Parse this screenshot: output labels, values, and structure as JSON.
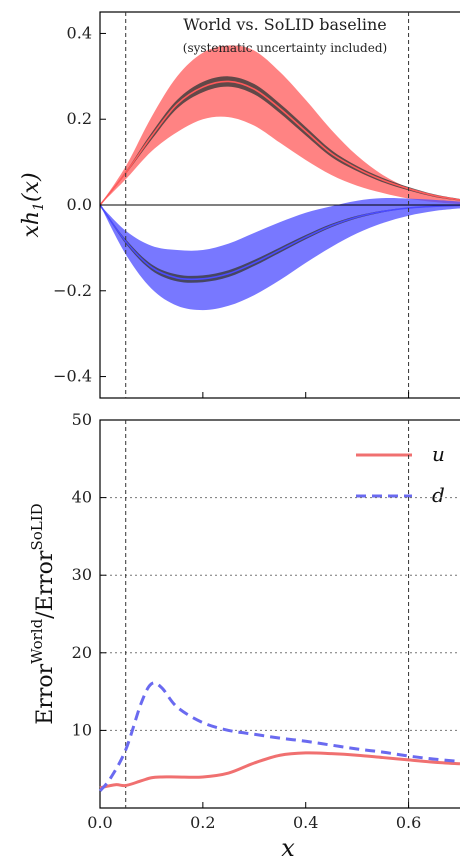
{
  "chart_data": [
    {
      "type": "line",
      "panel": "top",
      "title": "World vs. SoLID baseline",
      "subtitle": "(systematic uncertainty included)",
      "ylabel": "xh1(x)",
      "xlim": [
        0.0,
        0.7
      ],
      "ylim": [
        -0.45,
        0.45
      ],
      "yticks": [
        -0.4,
        -0.2,
        0.0,
        0.2,
        0.4
      ],
      "ytick_labels": [
        "−0.4",
        "−0.2",
        "0.0",
        "0.2",
        "0.4"
      ],
      "vlines": [
        0.05,
        0.6
      ],
      "hline": 0.0,
      "colors": {
        "u": "#ff5a5a",
        "d": "#4b4bff",
        "central": "#222222"
      },
      "series": [
        {
          "x": [
            0.0,
            0.05,
            0.1,
            0.15,
            0.2,
            0.25,
            0.3,
            0.35,
            0.4,
            0.45,
            0.5,
            0.55,
            0.6,
            0.65,
            0.7
          ],
          "central": [
            0.0,
            0.075,
            0.16,
            0.235,
            0.275,
            0.288,
            0.27,
            0.225,
            0.172,
            0.12,
            0.085,
            0.058,
            0.038,
            0.022,
            0.012
          ],
          "wide_upper": [
            0.0,
            0.09,
            0.205,
            0.3,
            0.355,
            0.372,
            0.36,
            0.31,
            0.245,
            0.175,
            0.115,
            0.07,
            0.04,
            0.022,
            0.012
          ],
          "wide_lower": [
            0.0,
            0.06,
            0.125,
            0.17,
            0.2,
            0.205,
            0.185,
            0.145,
            0.105,
            0.07,
            0.045,
            0.028,
            0.015,
            0.007,
            0.002
          ],
          "narrow_upper": [
            0.0,
            0.078,
            0.168,
            0.245,
            0.287,
            0.3,
            0.282,
            0.236,
            0.182,
            0.128,
            0.091,
            0.063,
            0.042,
            0.025,
            0.014
          ],
          "narrow_lower": [
            0.0,
            0.072,
            0.152,
            0.225,
            0.263,
            0.276,
            0.258,
            0.214,
            0.162,
            0.112,
            0.079,
            0.053,
            0.034,
            0.019,
            0.01
          ]
        },
        {
          "x": [
            0.0,
            0.05,
            0.1,
            0.15,
            0.2,
            0.25,
            0.3,
            0.35,
            0.4,
            0.45,
            0.5,
            0.55,
            0.6,
            0.65,
            0.7
          ],
          "central": [
            0.0,
            -0.085,
            -0.145,
            -0.17,
            -0.172,
            -0.16,
            -0.135,
            -0.105,
            -0.075,
            -0.048,
            -0.028,
            -0.015,
            -0.007,
            -0.003,
            -0.001
          ],
          "wide_upper": [
            0.0,
            -0.06,
            -0.095,
            -0.105,
            -0.105,
            -0.09,
            -0.065,
            -0.04,
            -0.018,
            -0.003,
            0.01,
            0.016,
            0.015,
            0.012,
            0.008
          ],
          "wide_lower": [
            0.0,
            -0.115,
            -0.195,
            -0.235,
            -0.245,
            -0.235,
            -0.21,
            -0.175,
            -0.135,
            -0.098,
            -0.066,
            -0.042,
            -0.025,
            -0.014,
            -0.008
          ],
          "narrow_upper": [
            0.0,
            -0.08,
            -0.138,
            -0.162,
            -0.164,
            -0.152,
            -0.128,
            -0.099,
            -0.07,
            -0.044,
            -0.025,
            -0.013,
            -0.006,
            -0.002,
            0.0
          ],
          "narrow_lower": [
            0.0,
            -0.09,
            -0.152,
            -0.178,
            -0.18,
            -0.168,
            -0.142,
            -0.111,
            -0.08,
            -0.052,
            -0.031,
            -0.017,
            -0.008,
            -0.004,
            -0.002
          ]
        }
      ]
    },
    {
      "type": "line",
      "panel": "bottom",
      "ylabel": "Error^World/Error^SoLID",
      "xlabel": "x",
      "xlim": [
        0.0,
        0.7
      ],
      "ylim": [
        0,
        50
      ],
      "xticks": [
        0.0,
        0.2,
        0.4,
        0.6
      ],
      "xtick_labels": [
        "0.0",
        "0.2",
        "0.4",
        "0.6"
      ],
      "yticks": [
        10,
        20,
        30,
        40,
        50
      ],
      "ytick_labels": [
        "10",
        "20",
        "30",
        "40",
        "50"
      ],
      "grid": "horizontal dotted",
      "vlines": [
        0.05,
        0.6
      ],
      "legend_position": "top-right",
      "series": [
        {
          "name": "u",
          "style": "solid",
          "color": "#f07070",
          "x": [
            0.0,
            0.03,
            0.05,
            0.08,
            0.1,
            0.12,
            0.15,
            0.2,
            0.25,
            0.3,
            0.35,
            0.4,
            0.45,
            0.5,
            0.55,
            0.6,
            0.65,
            0.7
          ],
          "y": [
            2.6,
            3.0,
            2.9,
            3.5,
            3.9,
            4.0,
            4.0,
            4.0,
            4.5,
            5.8,
            6.8,
            7.1,
            7.0,
            6.8,
            6.5,
            6.2,
            5.9,
            5.7
          ]
        },
        {
          "name": "d",
          "style": "dashed",
          "color": "#6a6af0",
          "x": [
            0.0,
            0.02,
            0.05,
            0.08,
            0.1,
            0.12,
            0.15,
            0.2,
            0.25,
            0.3,
            0.35,
            0.4,
            0.45,
            0.5,
            0.55,
            0.6,
            0.65,
            0.7
          ],
          "y": [
            2.2,
            3.8,
            7.5,
            13.5,
            16.0,
            15.5,
            13.0,
            11.0,
            10.0,
            9.5,
            9.0,
            8.6,
            8.1,
            7.6,
            7.2,
            6.7,
            6.3,
            6.0
          ]
        }
      ]
    }
  ]
}
